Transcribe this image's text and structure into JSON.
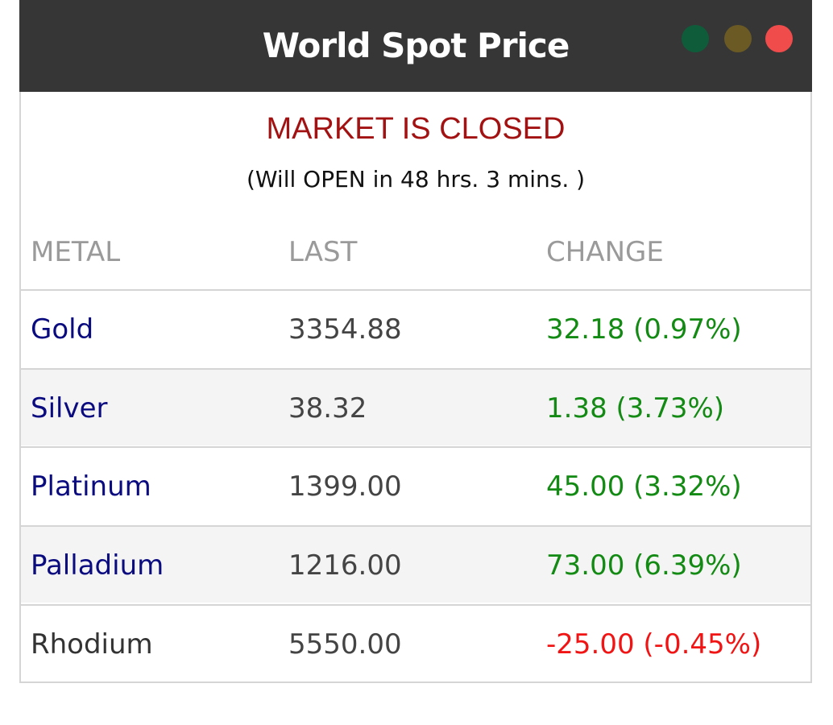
{
  "widget": {
    "title": "World Spot Price",
    "window_dots": [
      {
        "name": "green-dot",
        "color": "#0f5c3a"
      },
      {
        "name": "olive-dot",
        "color": "#6b5a24"
      },
      {
        "name": "red-dot",
        "color": "#f04c4c"
      }
    ],
    "status": "MARKET IS CLOSED",
    "status_color": "#a31212",
    "opens_in": "(Will OPEN in 48 hrs. 3 mins. )"
  },
  "table": {
    "headers": [
      "METAL",
      "LAST",
      "CHANGE"
    ],
    "rows": [
      {
        "metal": "Gold",
        "last": "3354.88",
        "change": "32.18 (0.97%)",
        "direction": "up",
        "linked": true
      },
      {
        "metal": "Silver",
        "last": "38.32",
        "change": "1.38 (3.73%)",
        "direction": "up",
        "linked": true
      },
      {
        "metal": "Platinum",
        "last": "1399.00",
        "change": "45.00 (3.32%)",
        "direction": "up",
        "linked": true
      },
      {
        "metal": "Palladium",
        "last": "1216.00",
        "change": "73.00 (6.39%)",
        "direction": "up",
        "linked": true
      },
      {
        "metal": "Rhodium",
        "last": "5550.00",
        "change": "-25.00 (-0.45%)",
        "direction": "down",
        "linked": false
      }
    ]
  },
  "colors": {
    "up": "#138a13",
    "down": "#f01414",
    "header_bar": "#363636",
    "alt_row": "#f4f4f4"
  }
}
